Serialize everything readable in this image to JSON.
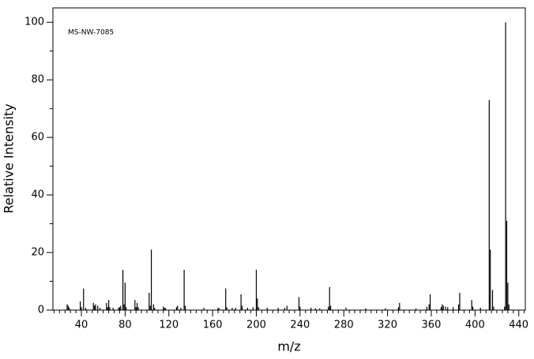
{
  "chart_data": {
    "type": "stick",
    "annotation": "MS-NW-7085",
    "x_label": "m/z",
    "y_label": "Relative Intensity",
    "xlim": [
      14,
      446
    ],
    "ylim": [
      0,
      105
    ],
    "xticks": [
      40,
      80,
      120,
      160,
      200,
      240,
      280,
      320,
      360,
      400,
      440
    ],
    "yticks": [
      0,
      20,
      40,
      60,
      80,
      100
    ],
    "xminorticks": [
      15,
      20,
      25,
      30,
      35,
      45,
      50,
      55,
      60,
      65,
      70,
      75,
      85,
      90,
      95,
      100,
      105,
      110,
      115,
      125,
      130,
      135,
      140,
      145,
      150,
      155,
      165,
      170,
      175,
      180,
      185,
      190,
      195,
      205,
      210,
      215,
      220,
      225,
      230,
      235,
      245,
      250,
      255,
      260,
      265,
      270,
      275,
      285,
      290,
      295,
      300,
      305,
      310,
      315,
      325,
      330,
      335,
      340,
      345,
      350,
      355,
      365,
      370,
      375,
      380,
      385,
      390,
      395,
      405,
      410,
      415,
      420,
      425,
      430,
      435,
      445
    ],
    "yminorticks": [
      10,
      30,
      50,
      70,
      90
    ],
    "color": "#000000",
    "x": [
      27,
      28,
      29,
      39,
      40,
      42,
      44,
      51,
      52,
      53,
      55,
      57,
      63,
      64,
      65,
      66,
      69,
      74,
      75,
      76,
      78,
      79,
      80,
      81,
      89,
      90,
      91,
      92,
      102,
      103,
      104,
      106,
      107,
      115,
      116,
      117,
      127,
      128,
      131,
      134,
      135,
      152,
      165,
      166,
      172,
      173,
      178,
      181,
      186,
      187,
      192,
      197,
      200,
      201,
      202,
      210,
      220,
      226,
      228,
      239,
      240,
      250,
      254,
      258,
      266,
      267,
      268,
      282,
      300,
      318,
      330,
      331,
      346,
      356,
      358,
      359,
      369,
      370,
      371,
      373,
      375,
      380,
      385,
      386,
      397,
      398,
      405,
      413,
      414,
      416,
      417,
      427,
      428,
      429,
      430,
      431
    ],
    "values": [
      2,
      1.5,
      0.8,
      3,
      1,
      7.5,
      0.8,
      2.5,
      1.5,
      2,
      1.5,
      0.8,
      2.5,
      1,
      3.5,
      1,
      0.8,
      0.8,
      1,
      1.5,
      14,
      2,
      9.5,
      1,
      3.5,
      1,
      2.5,
      1,
      6,
      1.5,
      21,
      2,
      0.8,
      1.2,
      0.8,
      0.7,
      1,
      1.5,
      0.8,
      14,
      1.5,
      0.8,
      0.8,
      0.6,
      7.5,
      1,
      0.8,
      0.8,
      5.5,
      1.5,
      0.8,
      1,
      14,
      4,
      1,
      0.8,
      0.8,
      0.8,
      1.5,
      4.5,
      1.2,
      0.8,
      0.6,
      0.6,
      1.2,
      8,
      1.5,
      0.8,
      0.6,
      0.6,
      1,
      2.5,
      0.6,
      1.2,
      2,
      5.5,
      1,
      2,
      1.5,
      1.2,
      1,
      1,
      2,
      6,
      3.5,
      1.2,
      0.8,
      73,
      21,
      7,
      1.2,
      1.2,
      100,
      31,
      9.5,
      2
    ]
  }
}
